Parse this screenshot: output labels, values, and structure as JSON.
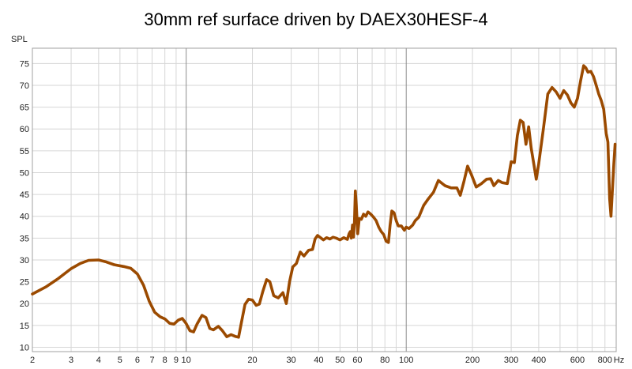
{
  "chart_data": {
    "type": "line",
    "title": "30mm ref surface driven by DAEX30HESF-4",
    "ylabel": "SPL",
    "xlabel": "Hz",
    "x_scale": "log",
    "xlim": [
      2,
      900
    ],
    "ylim": [
      9,
      78.5
    ],
    "grid": true,
    "x_ticks": [
      2,
      3,
      4,
      5,
      6,
      7,
      8,
      9,
      10,
      20,
      30,
      40,
      50,
      60,
      80,
      100,
      200,
      300,
      400,
      600,
      800
    ],
    "x_tick_labels": [
      "2",
      "3",
      "4",
      "5",
      "6",
      "7",
      "8",
      "9",
      "10",
      "20",
      "30",
      "40",
      "50",
      "60",
      "80",
      "100",
      "200",
      "300",
      "400",
      "600",
      "800"
    ],
    "y_ticks": [
      10,
      15,
      20,
      25,
      30,
      35,
      40,
      45,
      50,
      55,
      60,
      65,
      70,
      75
    ],
    "y_tick_labels": [
      "10",
      "15",
      "20",
      "25",
      "30",
      "35",
      "40",
      "45",
      "50",
      "55",
      "60",
      "65",
      "70",
      "75"
    ],
    "series": [
      {
        "color": "#9b4a00",
        "points": [
          [
            2.0,
            22.2
          ],
          [
            2.3,
            23.8
          ],
          [
            2.6,
            25.6
          ],
          [
            3.0,
            28.0
          ],
          [
            3.3,
            29.2
          ],
          [
            3.6,
            29.9
          ],
          [
            4.0,
            30.0
          ],
          [
            4.3,
            29.6
          ],
          [
            4.7,
            28.9
          ],
          [
            5.2,
            28.5
          ],
          [
            5.6,
            28.1
          ],
          [
            6.0,
            26.8
          ],
          [
            6.4,
            24.2
          ],
          [
            6.8,
            20.5
          ],
          [
            7.2,
            18.0
          ],
          [
            7.6,
            17.0
          ],
          [
            8.0,
            16.5
          ],
          [
            8.4,
            15.5
          ],
          [
            8.8,
            15.3
          ],
          [
            9.2,
            16.2
          ],
          [
            9.6,
            16.6
          ],
          [
            10.0,
            15.4
          ],
          [
            10.4,
            13.8
          ],
          [
            10.8,
            13.5
          ],
          [
            11.2,
            15.3
          ],
          [
            11.8,
            17.3
          ],
          [
            12.3,
            16.8
          ],
          [
            12.8,
            14.3
          ],
          [
            13.3,
            14.0
          ],
          [
            14.0,
            14.8
          ],
          [
            14.6,
            13.8
          ],
          [
            15.3,
            12.4
          ],
          [
            16.0,
            12.9
          ],
          [
            16.7,
            12.5
          ],
          [
            17.3,
            12.3
          ],
          [
            17.8,
            15.5
          ],
          [
            18.5,
            19.8
          ],
          [
            19.2,
            21.0
          ],
          [
            20.0,
            20.8
          ],
          [
            20.8,
            19.6
          ],
          [
            21.5,
            19.9
          ],
          [
            22.3,
            22.8
          ],
          [
            23.2,
            25.5
          ],
          [
            24.0,
            25.0
          ],
          [
            25.0,
            21.8
          ],
          [
            26.2,
            21.3
          ],
          [
            27.5,
            22.5
          ],
          [
            28.5,
            20.0
          ],
          [
            29.5,
            25.0
          ],
          [
            30.5,
            28.4
          ],
          [
            31.7,
            29.2
          ],
          [
            33.0,
            31.8
          ],
          [
            34.3,
            30.9
          ],
          [
            36.0,
            32.2
          ],
          [
            37.5,
            32.4
          ],
          [
            38.5,
            34.8
          ],
          [
            39.5,
            35.6
          ],
          [
            40.5,
            35.2
          ],
          [
            42.0,
            34.6
          ],
          [
            43.5,
            35.1
          ],
          [
            45.0,
            34.8
          ],
          [
            46.5,
            35.2
          ],
          [
            48.0,
            35.0
          ],
          [
            50.0,
            34.6
          ],
          [
            52.0,
            35.1
          ],
          [
            54.0,
            34.7
          ],
          [
            55.0,
            36.0
          ],
          [
            55.7,
            36.5
          ],
          [
            56.3,
            35.0
          ],
          [
            57.0,
            38.0
          ],
          [
            57.6,
            35.2
          ],
          [
            58.2,
            38.8
          ],
          [
            58.7,
            45.8
          ],
          [
            59.3,
            42.5
          ],
          [
            60.2,
            36.0
          ],
          [
            61.2,
            39.5
          ],
          [
            62.5,
            39.3
          ],
          [
            64.0,
            40.5
          ],
          [
            65.5,
            40.0
          ],
          [
            67.0,
            41.0
          ],
          [
            69.0,
            40.5
          ],
          [
            71.0,
            39.8
          ],
          [
            73.0,
            39.0
          ],
          [
            75.0,
            37.5
          ],
          [
            77.0,
            36.5
          ],
          [
            79.0,
            35.8
          ],
          [
            81.0,
            34.3
          ],
          [
            83.0,
            34.0
          ],
          [
            84.5,
            38.0
          ],
          [
            86.0,
            41.2
          ],
          [
            88.0,
            40.8
          ],
          [
            90.0,
            39.0
          ],
          [
            92.0,
            37.8
          ],
          [
            95.0,
            37.8
          ],
          [
            98.0,
            36.8
          ],
          [
            100.0,
            37.5
          ],
          [
            103.0,
            37.2
          ],
          [
            107.0,
            38.0
          ],
          [
            110.0,
            39.0
          ],
          [
            114.0,
            39.8
          ],
          [
            120.0,
            42.5
          ],
          [
            126.0,
            44.0
          ],
          [
            133.0,
            45.5
          ],
          [
            140.0,
            48.2
          ],
          [
            150.0,
            47.0
          ],
          [
            160.0,
            46.5
          ],
          [
            170.0,
            46.5
          ],
          [
            176.0,
            44.8
          ],
          [
            183.0,
            48.0
          ],
          [
            190.0,
            51.5
          ],
          [
            198.0,
            49.5
          ],
          [
            208.0,
            46.7
          ],
          [
            220.0,
            47.5
          ],
          [
            232.0,
            48.5
          ],
          [
            242.0,
            48.6
          ],
          [
            250.0,
            47.0
          ],
          [
            262.0,
            48.2
          ],
          [
            273.0,
            47.7
          ],
          [
            288.0,
            47.5
          ],
          [
            300.0,
            52.5
          ],
          [
            310.0,
            52.3
          ],
          [
            320.0,
            58.5
          ],
          [
            330.0,
            62.0
          ],
          [
            340.0,
            61.5
          ],
          [
            350.0,
            56.5
          ],
          [
            360.0,
            60.5
          ],
          [
            370.0,
            55.5
          ],
          [
            380.0,
            52.0
          ],
          [
            390.0,
            48.5
          ],
          [
            400.0,
            52.0
          ],
          [
            420.0,
            60.0
          ],
          [
            440.0,
            68.0
          ],
          [
            460.0,
            69.5
          ],
          [
            480.0,
            68.5
          ],
          [
            500.0,
            67.0
          ],
          [
            520.0,
            68.8
          ],
          [
            540.0,
            67.8
          ],
          [
            560.0,
            66.0
          ],
          [
            580.0,
            65.0
          ],
          [
            600.0,
            67.0
          ],
          [
            620.0,
            71.0
          ],
          [
            640.0,
            74.5
          ],
          [
            655.0,
            74.0
          ],
          [
            670.0,
            73.0
          ],
          [
            690.0,
            73.2
          ],
          [
            710.0,
            72.0
          ],
          [
            730.0,
            70.0
          ],
          [
            750.0,
            68.0
          ],
          [
            770.0,
            66.5
          ],
          [
            790.0,
            64.5
          ],
          [
            810.0,
            59.0
          ],
          [
            825.0,
            57.0
          ],
          [
            840.0,
            44.0
          ],
          [
            852.0,
            40.0
          ],
          [
            865.0,
            46.0
          ],
          [
            878.0,
            52.0
          ],
          [
            890.0,
            56.5
          ]
        ]
      }
    ]
  }
}
